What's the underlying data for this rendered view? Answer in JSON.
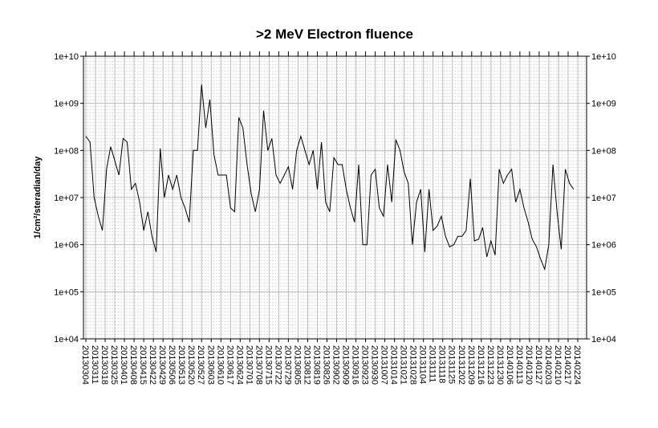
{
  "chart_data": {
    "type": "line",
    "title": ">2 MeV Electron fluence",
    "y_label": "1/cm²/steradian/day",
    "log_scale": true,
    "grid": true,
    "color": "#000000",
    "ylim": [
      10000,
      10000000000
    ],
    "yticks": [
      {
        "value": 10000,
        "label": "1e+04"
      },
      {
        "value": 100000,
        "label": "1e+05"
      },
      {
        "value": 1000000,
        "label": "1e+06"
      },
      {
        "value": 10000000,
        "label": "1e+07"
      },
      {
        "value": 100000000,
        "label": "1e+08"
      },
      {
        "value": 1000000000,
        "label": "1e+09"
      },
      {
        "value": 10000000000,
        "label": "1e+10"
      }
    ],
    "xticks": [
      "20130304",
      "20130311",
      "20130318",
      "20130325",
      "20130401",
      "20130408",
      "20130415",
      "20130422",
      "20130429",
      "20130506",
      "20130513",
      "20130520",
      "20130527",
      "20130603",
      "20130610",
      "20130617",
      "20130624",
      "20130701",
      "20130708",
      "20130715",
      "20130722",
      "20130729",
      "20130805",
      "20130812",
      "20130819",
      "20130826",
      "20130902",
      "20130909",
      "20130916",
      "20130923",
      "20130930",
      "20131007",
      "20131014",
      "20131021",
      "20131028",
      "20131104",
      "20131111",
      "20131118",
      "20131125",
      "20131202",
      "20131209",
      "20131216",
      "20131223",
      "20131230",
      "20140106",
      "20140113",
      "20140120",
      "20140127",
      "20140203",
      "20140210",
      "20140217",
      "20140224"
    ],
    "x": [
      "20130304",
      "20130307",
      "20130310",
      "20130313",
      "20130316",
      "20130319",
      "20130322",
      "20130325",
      "20130328",
      "20130331",
      "20130403",
      "20130406",
      "20130409",
      "20130412",
      "20130415",
      "20130418",
      "20130421",
      "20130424",
      "20130427",
      "20130430",
      "20130503",
      "20130506",
      "20130509",
      "20130512",
      "20130515",
      "20130518",
      "20130521",
      "20130524",
      "20130527",
      "20130530",
      "20130602",
      "20130605",
      "20130608",
      "20130611",
      "20130614",
      "20130617",
      "20130620",
      "20130623",
      "20130626",
      "20130629",
      "20130702",
      "20130705",
      "20130708",
      "20130711",
      "20130714",
      "20130717",
      "20130720",
      "20130723",
      "20130726",
      "20130729",
      "20130801",
      "20130804",
      "20130807",
      "20130810",
      "20130813",
      "20130816",
      "20130819",
      "20130822",
      "20130825",
      "20130828",
      "20130831",
      "20130903",
      "20130906",
      "20130909",
      "20130912",
      "20130915",
      "20130918",
      "20130921",
      "20130924",
      "20130927",
      "20130930",
      "20131003",
      "20131006",
      "20131009",
      "20131012",
      "20131015",
      "20131018",
      "20131021",
      "20131024",
      "20131027",
      "20131030",
      "20131102",
      "20131105",
      "20131108",
      "20131111",
      "20131114",
      "20131117",
      "20131120",
      "20131123",
      "20131126",
      "20131129",
      "20131202",
      "20131205",
      "20131208",
      "20131211",
      "20131214",
      "20131217",
      "20131220",
      "20131223",
      "20131226",
      "20131229",
      "20140101",
      "20140104",
      "20140107",
      "20140110",
      "20140113",
      "20140116",
      "20140119",
      "20140122",
      "20140125",
      "20140128",
      "20140131",
      "20140203",
      "20140206",
      "20140209",
      "20140212",
      "20140215",
      "20140218",
      "20140221"
    ],
    "values": [
      200000000,
      150000000,
      10000000,
      4000000,
      2000000,
      40000000,
      120000000,
      60000000,
      30000000,
      180000000,
      150000000,
      15000000,
      20000000,
      8000000,
      2000000,
      5000000,
      1500000,
      700000,
      110000000,
      10000000,
      30000000,
      15000000,
      30000000,
      10000000,
      6000000,
      3000000,
      100000000,
      100000000,
      2500000000,
      300000000,
      1200000000,
      80000000,
      30000000,
      30000000,
      30000000,
      6000000,
      5000000,
      500000000,
      300000000,
      50000000,
      12000000,
      5000000,
      15000000,
      700000000,
      100000000,
      180000000,
      30000000,
      20000000,
      30000000,
      45000000,
      15000000,
      100000000,
      200000000,
      100000000,
      50000000,
      100000000,
      15000000,
      150000000,
      8000000,
      5000000,
      70000000,
      50000000,
      50000000,
      15000000,
      6000000,
      3000000,
      50000000,
      1000000,
      1000000,
      30000000,
      40000000,
      6000000,
      4000000,
      50000000,
      8000000,
      170000000,
      100000000,
      35000000,
      20000000,
      1000000,
      8000000,
      15000000,
      700000,
      15000000,
      2000000,
      2500000,
      4000000,
      1500000,
      900000,
      1000000,
      1500000,
      1500000,
      2000000,
      25000000,
      1200000,
      1300000,
      2300000,
      550000,
      1200000,
      600000,
      40000000,
      20000000,
      30000000,
      40000000,
      8000000,
      15000000,
      6000000,
      3000000,
      1300000,
      900000,
      500000,
      300000,
      1000000,
      50000000,
      5000000,
      800000,
      40000000,
      20000000,
      15000000
    ]
  }
}
